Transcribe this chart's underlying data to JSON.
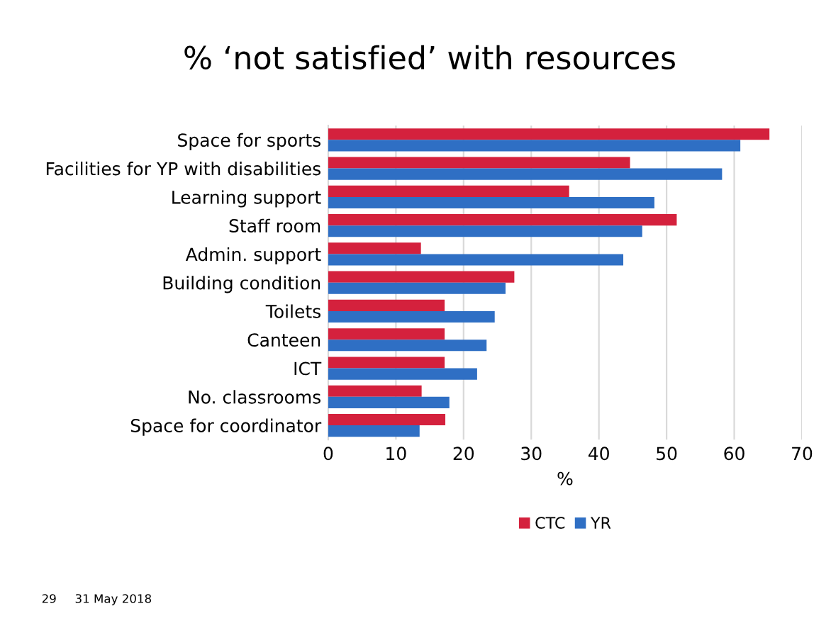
{
  "chart_data": {
    "type": "bar",
    "orientation": "horizontal",
    "title": "% ‘not satisfied’ with resources",
    "xlabel": "%",
    "categories": [
      "Space for sports",
      "Facilities for YP with disabilities",
      "Learning support",
      "Staff room",
      "Admin. support",
      "Building condition",
      "Toilets",
      "Canteen",
      "ICT",
      "No. classrooms",
      "Space for coordinator"
    ],
    "series": [
      {
        "name": "CTC",
        "color": "#d4213d",
        "values": [
          65.2,
          44.6,
          35.6,
          51.5,
          13.7,
          27.5,
          17.2,
          17.2,
          17.2,
          13.8,
          17.3
        ]
      },
      {
        "name": "YR",
        "color": "#2f6fc4",
        "values": [
          60.9,
          58.2,
          48.2,
          46.4,
          43.6,
          26.2,
          24.6,
          23.4,
          22.0,
          17.9,
          13.5
        ]
      }
    ],
    "xlim": [
      0,
      70
    ],
    "xticks": [
      0,
      10,
      20,
      30,
      40,
      50,
      60,
      70
    ],
    "grid": "x",
    "legend": "bottom",
    "annotations": [
      "29",
      "31 May 2018"
    ]
  }
}
